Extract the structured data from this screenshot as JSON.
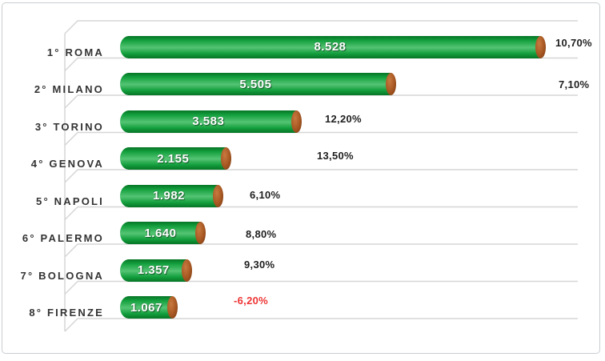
{
  "chart_data": {
    "type": "bar",
    "orientation": "horizontal",
    "style": "3d-cylinder",
    "title": "",
    "xlabel": "",
    "ylabel": "",
    "xlim": [
      0,
      9000
    ],
    "grid": true,
    "legend": false,
    "categories": [
      "1° ROMA",
      "2° MILANO",
      "3° TORINO",
      "4° GENOVA",
      "5° NAPOLI",
      "6° PALERMO",
      "7° BOLOGNA",
      "8° FIRENZE"
    ],
    "series": [
      {
        "name": "valori",
        "values": [
          8528,
          5505,
          3583,
          2155,
          1982,
          1640,
          1357,
          1067
        ],
        "value_labels": [
          "8.528",
          "5.505",
          "3.583",
          "2.155",
          "1.982",
          "1.640",
          "1.357",
          "1.067"
        ]
      },
      {
        "name": "variazione-percentuale",
        "values": [
          10.7,
          7.1,
          12.2,
          13.5,
          6.1,
          8.8,
          9.3,
          -6.2
        ],
        "value_labels": [
          "10,70%",
          "7,10%",
          "12,20%",
          "13,50%",
          "6,10%",
          "8,80%",
          "9,30%",
          "-6,20%"
        ]
      }
    ],
    "colors": {
      "bar_green_dark": "#067426",
      "bar_green": "#14a03e",
      "bar_green_light": "#55c474",
      "cap_brown_light": "#c87a40",
      "cap_brown": "#ab5a24",
      "cap_brown_dark": "#7a3a10",
      "pct_positive": "#1f1f1f",
      "pct_negative": "#ee3434",
      "category_label": "#333333",
      "gridline": "#d6d6d6",
      "frame_border": "#c9cdd0"
    }
  }
}
